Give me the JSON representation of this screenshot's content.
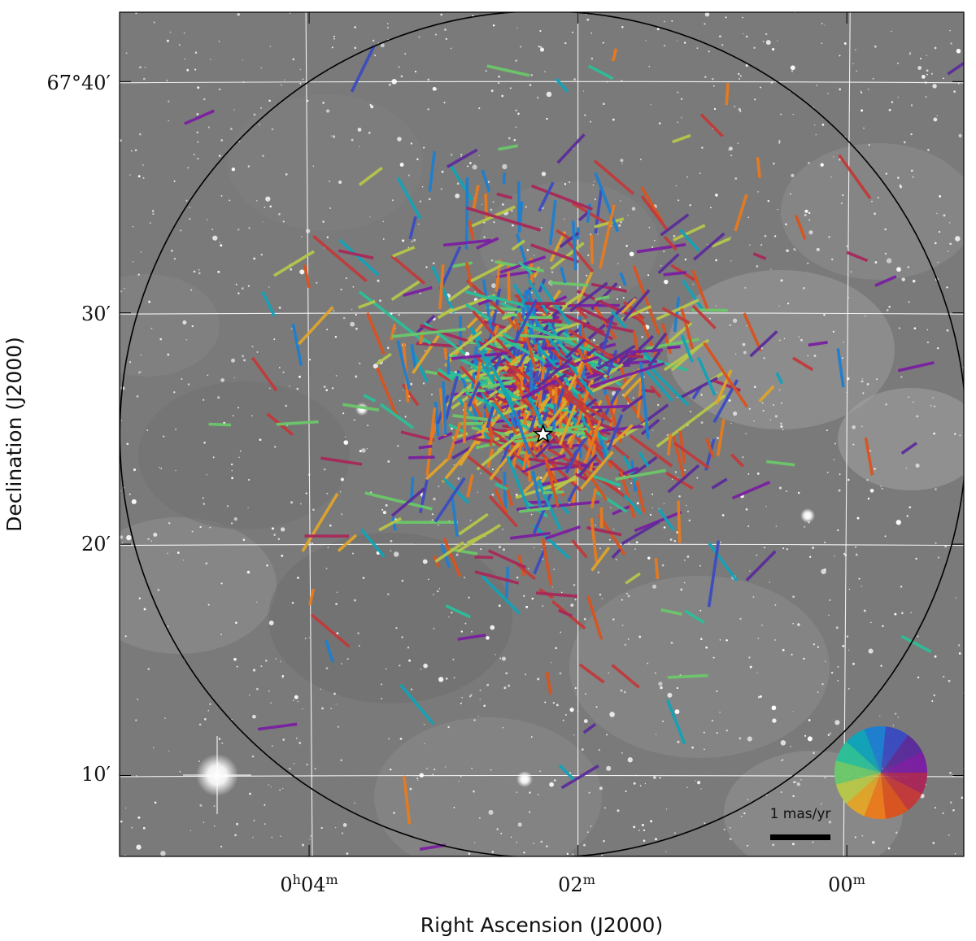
{
  "chart_data": {
    "type": "scatter",
    "subtype": "proper-motion vector map over grayscale sky image",
    "xlabel": "Right Ascension (J2000)",
    "ylabel": "Declination (J2000)",
    "x_ticks": [
      {
        "pre": "0",
        "h": "h",
        "mid": "04",
        "m": "m",
        "ra_minutes": 4
      },
      {
        "pre": "",
        "h": "",
        "mid": "02",
        "m": "m",
        "ra_minutes": 2
      },
      {
        "pre": "",
        "h": "",
        "mid": "00",
        "m": "m",
        "ra_minutes": 0
      }
    ],
    "y_ticks": [
      {
        "text": "67°40′",
        "dec_arcmin": 40
      },
      {
        "text": "30′",
        "dec_arcmin": 30
      },
      {
        "text": "20′",
        "dec_arcmin": 20
      },
      {
        "text": "10′",
        "dec_arcmin": 10
      }
    ],
    "xlim_ra_minutes": [
      5.41,
      -0.87
    ],
    "ylim_dec_arcmin": [
      6.5,
      43
    ],
    "grid": true,
    "center_marker": {
      "ra_minutes": 2.26,
      "dec_arcmin": 24.75,
      "symbol": "star"
    },
    "circle": {
      "ra_minutes": 2.26,
      "dec_arcmin": 24.75,
      "radius_deg_dec_arcmin": 18.3
    },
    "scale_bar": {
      "label": "1 mas/yr",
      "length_mas_per_yr": 1
    },
    "color_wheel": {
      "meaning": "direction of proper motion",
      "position": "bottom-right"
    },
    "vector_count_approx": 900,
    "vector_color_palette": [
      "#7b1fa2",
      "#5b2d9a",
      "#3b4cc0",
      "#1e7fd0",
      "#11a3b8",
      "#2cbf98",
      "#6cc86a",
      "#b7c64a",
      "#e0a52a",
      "#e97b1e",
      "#d9541f",
      "#c23a3a",
      "#a8285a"
    ]
  }
}
